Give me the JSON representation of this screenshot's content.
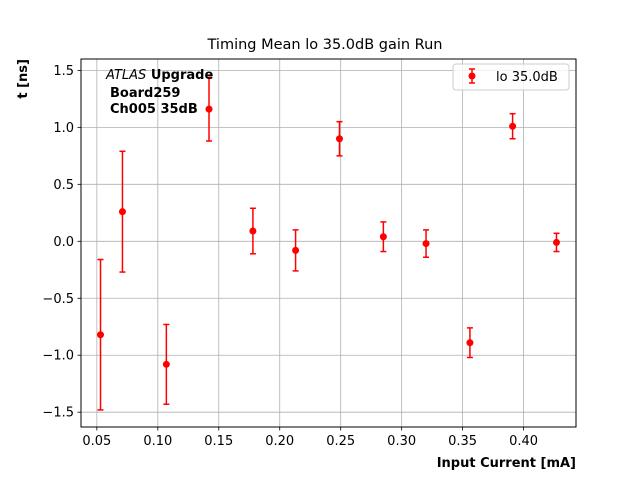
{
  "chart_data": {
    "type": "scatter",
    "title": "Timing Mean lo 35.0dB gain Run",
    "xlabel": "Input Current [mA]",
    "ylabel": "t [ns]",
    "xlim": [
      0.037,
      0.443
    ],
    "ylim": [
      -1.63,
      1.6
    ],
    "xticks": [
      0.05,
      0.1,
      0.15,
      0.2,
      0.25,
      0.3,
      0.35,
      0.4
    ],
    "xtick_labels": [
      "0.05",
      "0.10",
      "0.15",
      "0.20",
      "0.25",
      "0.30",
      "0.35",
      "0.40"
    ],
    "yticks": [
      -1.5,
      -1.0,
      -0.5,
      0.0,
      0.5,
      1.0,
      1.5
    ],
    "ytick_labels": [
      "−1.5",
      "−1.0",
      "−0.5",
      "0.0",
      "0.5",
      "1.0",
      "1.5"
    ],
    "grid": true,
    "legend_position": "top-right",
    "series": [
      {
        "name": "lo 35.0dB",
        "color": "#ff0000",
        "x": [
          0.053,
          0.071,
          0.107,
          0.142,
          0.178,
          0.213,
          0.249,
          0.285,
          0.32,
          0.356,
          0.391,
          0.427
        ],
        "y": [
          -0.82,
          0.26,
          -1.08,
          1.16,
          0.09,
          -0.08,
          0.9,
          0.04,
          -0.02,
          -0.89,
          1.01,
          -0.01
        ],
        "err": [
          0.66,
          0.53,
          0.35,
          0.28,
          0.2,
          0.18,
          0.15,
          0.13,
          0.12,
          0.13,
          0.11,
          0.08
        ]
      }
    ],
    "annotation": {
      "italic": "ATLAS",
      "bold": "Upgrade",
      "line2": "Board259",
      "line3": "Ch005 35dB"
    }
  }
}
